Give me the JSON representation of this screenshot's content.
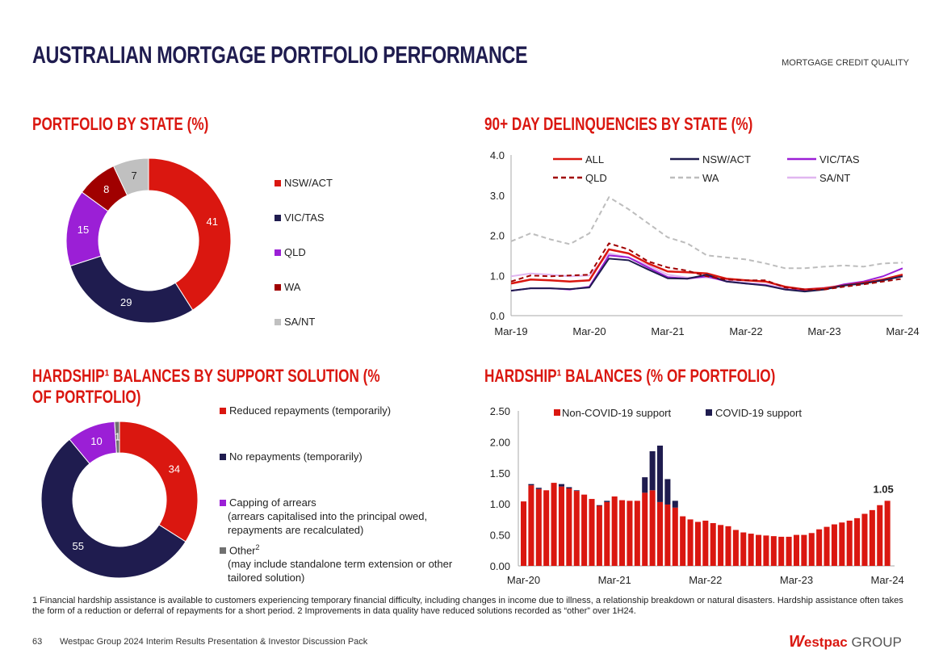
{
  "header": {
    "title": "AUSTRALIAN MORTGAGE PORTFOLIO PERFORMANCE",
    "section": "MORTGAGE CREDIT QUALITY"
  },
  "footer": {
    "page": "63",
    "text": "Westpac Group 2024 Interim Results Presentation & Investor Discussion Pack",
    "logo": "Westpac GROUP",
    "footnote": "1 Financial hardship assistance is available to customers experiencing temporary financial difficulty, including changes in income due to illness, a relationship breakdown or natural disasters. Hardship assistance often takes the form of a reduction or deferral of repayments for a short period. 2 Improvements in data quality have reduced solutions recorded as “other” over 1H24."
  },
  "colors": {
    "red": "#da1710",
    "navy": "#1f1c4f",
    "purple": "#9b1fd6",
    "darkred": "#a00000",
    "grey": "#c0c0c0",
    "lavender": "#e0b6f0"
  },
  "chart_data": [
    {
      "type": "pie",
      "title": "PORTFOLIO BY STATE (%)",
      "donut": true,
      "categories": [
        "NSW/ACT",
        "VIC/TAS",
        "QLD",
        "WA",
        "SA/NT"
      ],
      "values": [
        41,
        29,
        15,
        8,
        7
      ],
      "colors": [
        "#da1710",
        "#1f1c4f",
        "#9b1fd6",
        "#a00000",
        "#c0c0c0"
      ],
      "legend": "right"
    },
    {
      "type": "line",
      "title": "90+ DAY DELINQUENCIES BY STATE (%)",
      "ylim": [
        0,
        4
      ],
      "yticks": [
        "0.0",
        "1.0",
        "2.0",
        "3.0",
        "4.0"
      ],
      "xticks": [
        "Mar-19",
        "Mar-20",
        "Mar-21",
        "Mar-22",
        "Mar-23",
        "Mar-24"
      ],
      "x": [
        "Mar-19",
        "Jun-19",
        "Sep-19",
        "Dec-19",
        "Mar-20",
        "Jun-20",
        "Sep-20",
        "Dec-20",
        "Mar-21",
        "Jun-21",
        "Sep-21",
        "Dec-21",
        "Mar-22",
        "Jun-22",
        "Sep-22",
        "Dec-22",
        "Mar-23",
        "Jun-23",
        "Sep-23",
        "Dec-23",
        "Mar-24"
      ],
      "legend": "top",
      "series": [
        {
          "name": "ALL",
          "color": "#da1710",
          "dash": false,
          "values": [
            0.8,
            0.9,
            0.88,
            0.85,
            0.88,
            1.65,
            1.55,
            1.3,
            1.1,
            1.08,
            1.05,
            0.92,
            0.88,
            0.85,
            0.72,
            0.65,
            0.68,
            0.75,
            0.82,
            0.9,
            1.02
          ]
        },
        {
          "name": "NSW/ACT",
          "color": "#1f1c4f",
          "dash": false,
          "values": [
            0.62,
            0.68,
            0.68,
            0.66,
            0.7,
            1.42,
            1.38,
            1.15,
            0.93,
            0.92,
            1.02,
            0.85,
            0.8,
            0.75,
            0.65,
            0.6,
            0.65,
            0.75,
            0.8,
            0.88,
            0.98
          ]
        },
        {
          "name": "VIC/TAS",
          "color": "#9b1fd6",
          "dash": false,
          "values": [
            0.62,
            0.68,
            0.68,
            0.65,
            0.72,
            1.5,
            1.45,
            1.2,
            0.96,
            0.92,
            0.98,
            0.85,
            0.8,
            0.76,
            0.65,
            0.62,
            0.66,
            0.78,
            0.85,
            0.98,
            1.18
          ]
        },
        {
          "name": "QLD",
          "color": "#a00000",
          "dash": true,
          "values": [
            0.85,
            1.0,
            0.98,
            1.0,
            1.02,
            1.8,
            1.65,
            1.35,
            1.2,
            1.12,
            0.98,
            0.9,
            0.88,
            0.88,
            0.7,
            0.65,
            0.65,
            0.72,
            0.78,
            0.85,
            0.92
          ]
        },
        {
          "name": "WA",
          "color": "#bdbdbd",
          "dash": true,
          "values": [
            1.85,
            2.05,
            1.9,
            1.78,
            2.05,
            2.95,
            2.65,
            2.3,
            1.95,
            1.8,
            1.5,
            1.45,
            1.4,
            1.3,
            1.18,
            1.18,
            1.22,
            1.25,
            1.22,
            1.3,
            1.32
          ]
        },
        {
          "name": "SA/NT",
          "color": "#e0b6f0",
          "dash": false,
          "values": [
            0.98,
            1.05,
            1.02,
            0.98,
            1.0,
            1.55,
            1.45,
            1.25,
            1.02,
            0.95,
            0.95,
            0.88,
            0.82,
            0.78,
            0.68,
            0.66,
            0.7,
            0.76,
            0.82,
            0.9,
            1.0
          ]
        }
      ]
    },
    {
      "type": "pie",
      "title": "HARDSHIP¹ BALANCES BY SUPPORT SOLUTION (% OF PORTFOLIO)",
      "donut": true,
      "categories": [
        "Reduced repayments (temporarily)",
        "No repayments (temporarily)",
        "Capping of arrears",
        "Other"
      ],
      "descriptions": [
        "",
        "",
        "(arrears capitalised into the principal owed, repayments are recalculated)",
        "(may include standalone term extension or other tailored solution)"
      ],
      "values": [
        34,
        55,
        10,
        1
      ],
      "colors": [
        "#da1710",
        "#1f1c4f",
        "#9b1fd6",
        "#707070"
      ],
      "legend": "right"
    },
    {
      "type": "bar",
      "stacked": true,
      "title": "HARDSHIP¹ BALANCES (% OF PORTFOLIO)",
      "ylim": [
        0,
        2.5
      ],
      "yticks": [
        "0.00",
        "0.50",
        "1.00",
        "1.50",
        "2.00",
        "2.50"
      ],
      "xticks": [
        "Mar-20",
        "Mar-21",
        "Mar-22",
        "Mar-23",
        "Mar-24"
      ],
      "x_range": [
        "Mar-20",
        "Mar-24"
      ],
      "frequency": "monthly",
      "legend": "top",
      "data_label": "1.05",
      "series": [
        {
          "name": "Non-COVID-19 support",
          "color": "#da1710",
          "values": [
            1.04,
            1.3,
            1.24,
            1.22,
            1.34,
            1.28,
            1.25,
            1.21,
            1.15,
            1.08,
            0.97,
            1.03,
            1.12,
            1.06,
            1.05,
            1.05,
            1.18,
            1.22,
            1.03,
            0.99,
            0.94,
            0.8,
            0.75,
            0.71,
            0.73,
            0.69,
            0.66,
            0.64,
            0.58,
            0.54,
            0.52,
            0.5,
            0.49,
            0.48,
            0.47,
            0.47,
            0.5,
            0.5,
            0.53,
            0.59,
            0.63,
            0.67,
            0.7,
            0.73,
            0.77,
            0.84,
            0.9,
            0.98,
            1.05
          ]
        },
        {
          "name": "COVID-19 support",
          "color": "#1f1c4f",
          "values": [
            0,
            0.02,
            0.02,
            0,
            0,
            0.04,
            0.02,
            0.01,
            0,
            0,
            0.01,
            0.02,
            0,
            0,
            0,
            0,
            0.25,
            0.63,
            0.91,
            0.41,
            0.11,
            0,
            0,
            0,
            0,
            0,
            0,
            0,
            0,
            0,
            0,
            0,
            0,
            0,
            0,
            0,
            0,
            0,
            0,
            0,
            0,
            0,
            0,
            0,
            0,
            0,
            0,
            0,
            0
          ]
        }
      ]
    }
  ]
}
